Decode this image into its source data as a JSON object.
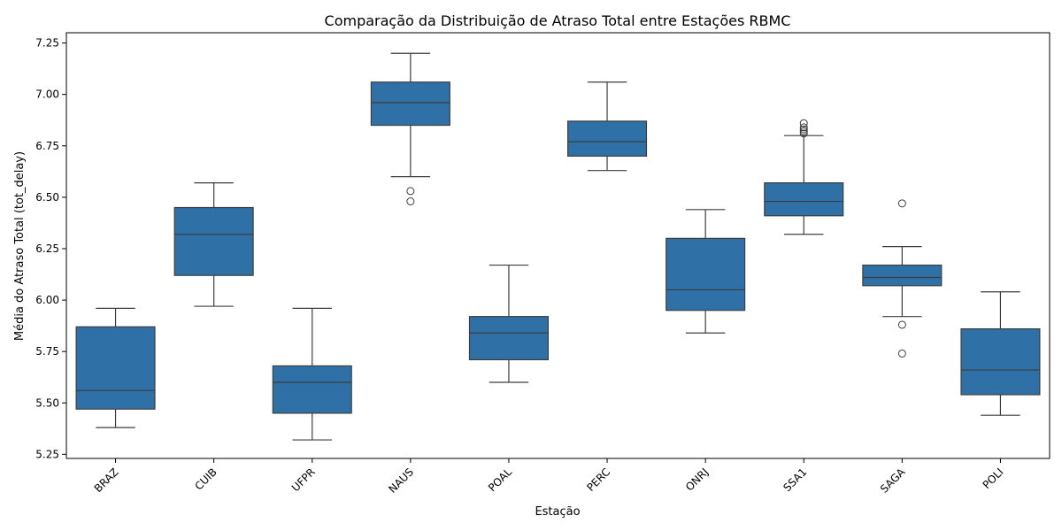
{
  "chart_data": {
    "type": "box",
    "title": "Comparação da Distribuição de Atraso Total entre Estações RBMC",
    "xlabel": "Estação",
    "ylabel": "Média do Atraso Total (tot_delay)",
    "ylim": [
      5.23,
      7.3
    ],
    "yticks": [
      5.25,
      5.5,
      5.75,
      6.0,
      6.25,
      6.5,
      6.75,
      7.0,
      7.25
    ],
    "ytick_labels": [
      "5.25",
      "5.50",
      "5.75",
      "6.00",
      "6.25",
      "6.50",
      "6.75",
      "7.00",
      "7.25"
    ],
    "box_color": "#2f71a7",
    "line_color": "#3d3d3d",
    "categories": [
      "BRAZ",
      "CUIB",
      "UFPR",
      "NAUS",
      "POAL",
      "PERC",
      "ONRJ",
      "SSA1",
      "SAGA",
      "POLI"
    ],
    "boxes": [
      {
        "label": "BRAZ",
        "whislo": 5.38,
        "q1": 5.47,
        "med": 5.56,
        "q3": 5.87,
        "whishi": 5.96,
        "fliers": []
      },
      {
        "label": "CUIB",
        "whislo": 5.97,
        "q1": 6.12,
        "med": 6.32,
        "q3": 6.45,
        "whishi": 6.57,
        "fliers": []
      },
      {
        "label": "UFPR",
        "whislo": 5.32,
        "q1": 5.45,
        "med": 5.6,
        "q3": 5.68,
        "whishi": 5.96,
        "fliers": []
      },
      {
        "label": "NAUS",
        "whislo": 6.6,
        "q1": 6.85,
        "med": 6.96,
        "q3": 7.06,
        "whishi": 7.2,
        "fliers": [
          6.53,
          6.48
        ]
      },
      {
        "label": "POAL",
        "whislo": 5.6,
        "q1": 5.71,
        "med": 5.84,
        "q3": 5.92,
        "whishi": 6.17,
        "fliers": []
      },
      {
        "label": "PERC",
        "whislo": 6.63,
        "q1": 6.7,
        "med": 6.77,
        "q3": 6.87,
        "whishi": 7.06,
        "fliers": []
      },
      {
        "label": "ONRJ",
        "whislo": 5.84,
        "q1": 5.95,
        "med": 6.05,
        "q3": 6.3,
        "whishi": 6.44,
        "fliers": []
      },
      {
        "label": "SSA1",
        "whislo": 6.32,
        "q1": 6.41,
        "med": 6.48,
        "q3": 6.57,
        "whishi": 6.8,
        "fliers": [
          6.86,
          6.84,
          6.83,
          6.82,
          6.81
        ]
      },
      {
        "label": "SAGA",
        "whislo": 5.92,
        "q1": 6.07,
        "med": 6.11,
        "q3": 6.17,
        "whishi": 6.26,
        "fliers": [
          6.47,
          5.88,
          5.74
        ]
      },
      {
        "label": "POLI",
        "whislo": 5.44,
        "q1": 5.54,
        "med": 5.66,
        "q3": 5.86,
        "whishi": 6.04,
        "fliers": []
      }
    ]
  }
}
